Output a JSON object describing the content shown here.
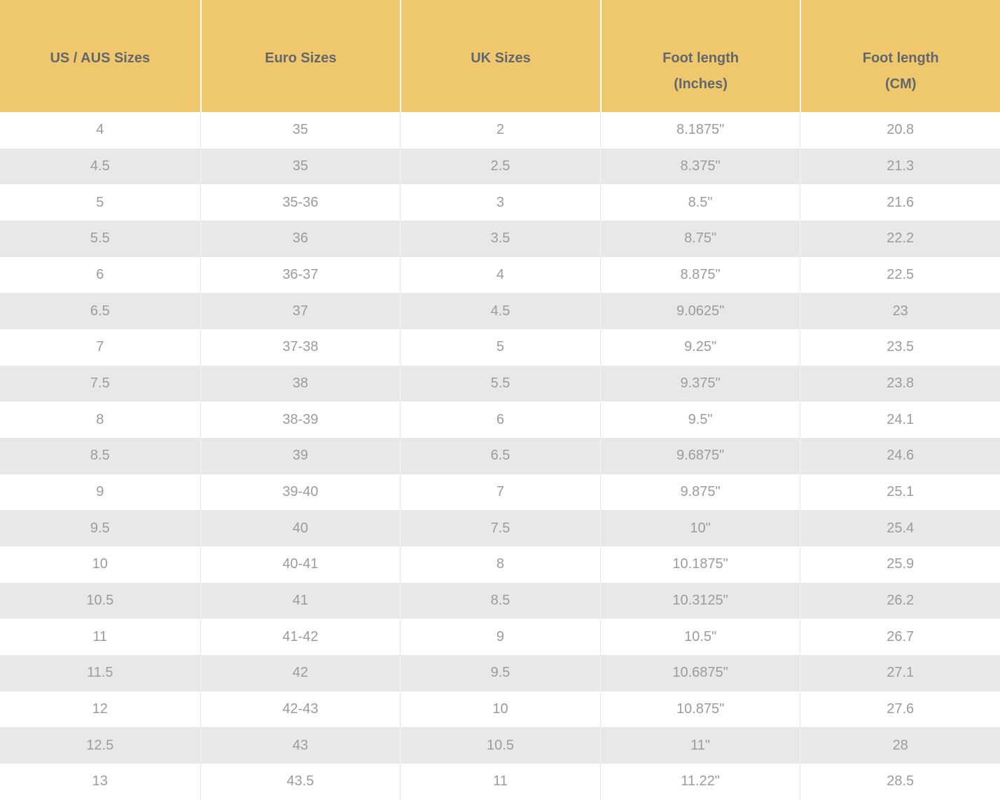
{
  "colors": {
    "header_bg": "#efc86d",
    "header_text": "#62666d",
    "header_divider": "#ffffff",
    "cell_text": "#9b9b9b",
    "row_bg": "#ffffff",
    "row_alt_bg": "#e8e8e8",
    "divider_on_white": "#e7e7e7",
    "divider_on_gray": "#f6f6f6"
  },
  "chart_data": {
    "type": "table",
    "columns": [
      {
        "title": "US / AUS Sizes",
        "subtitle": ""
      },
      {
        "title": "Euro Sizes",
        "subtitle": ""
      },
      {
        "title": "UK Sizes",
        "subtitle": ""
      },
      {
        "title": "Foot length",
        "subtitle": "(Inches)"
      },
      {
        "title": "Foot length",
        "subtitle": "(CM)"
      }
    ],
    "rows": [
      [
        "4",
        "35",
        "2",
        "8.1875\"",
        "20.8"
      ],
      [
        "4.5",
        "35",
        "2.5",
        "8.375\"",
        "21.3"
      ],
      [
        "5",
        "35-36",
        "3",
        "8.5\"",
        "21.6"
      ],
      [
        "5.5",
        "36",
        "3.5",
        "8.75\"",
        "22.2"
      ],
      [
        "6",
        "36-37",
        "4",
        "8.875\"",
        "22.5"
      ],
      [
        "6.5",
        "37",
        "4.5",
        "9.0625\"",
        "23"
      ],
      [
        "7",
        "37-38",
        "5",
        "9.25\"",
        "23.5"
      ],
      [
        "7.5",
        "38",
        "5.5",
        "9.375\"",
        "23.8"
      ],
      [
        "8",
        "38-39",
        "6",
        "9.5\"",
        "24.1"
      ],
      [
        "8.5",
        "39",
        "6.5",
        "9.6875\"",
        "24.6"
      ],
      [
        "9",
        "39-40",
        "7",
        "9.875\"",
        "25.1"
      ],
      [
        "9.5",
        "40",
        "7.5",
        "10\"",
        "25.4"
      ],
      [
        "10",
        "40-41",
        "8",
        "10.1875\"",
        "25.9"
      ],
      [
        "10.5",
        "41",
        "8.5",
        "10.3125\"",
        "26.2"
      ],
      [
        "11",
        "41-42",
        "9",
        "10.5\"",
        "26.7"
      ],
      [
        "11.5",
        "42",
        "9.5",
        "10.6875\"",
        "27.1"
      ],
      [
        "12",
        "42-43",
        "10",
        "10.875\"",
        "27.6"
      ],
      [
        "12.5",
        "43",
        "10.5",
        "11\"",
        "28"
      ],
      [
        "13",
        "43.5",
        "11",
        "11.22\"",
        "28.5"
      ]
    ]
  }
}
